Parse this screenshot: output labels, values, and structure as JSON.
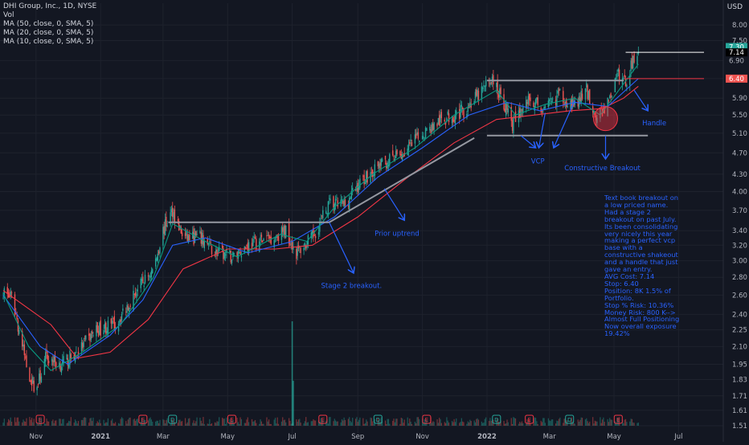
{
  "header": {
    "symbol": "DHI Group, Inc., 1D, NYSE",
    "vol_label": "Vol",
    "indicators": [
      "MA (50, close, 0, SMA, 5)",
      "MA (20, close, 0, SMA, 5)",
      "MA (10, close, 0, SMA, 5)"
    ],
    "currency": "USD"
  },
  "chart_data": {
    "type": "candlestick",
    "title": "DHI Group, Inc., 1D, NYSE",
    "y_scale": "log",
    "ylim": [
      1.48,
      8.5
    ],
    "y_ticks": [
      8.0,
      7.5,
      6.9,
      6.4,
      5.9,
      5.5,
      5.1,
      4.7,
      4.3,
      4.0,
      3.7,
      3.4,
      3.2,
      3.0,
      2.8,
      2.6,
      2.4,
      2.25,
      2.1,
      1.95,
      1.83,
      1.71,
      1.61,
      1.51
    ],
    "x_ticks": [
      "Nov",
      "2021",
      "Mar",
      "May",
      "Jul",
      "Sep",
      "Nov",
      "2022",
      "Mar",
      "May",
      "Jul"
    ],
    "price_labels": [
      {
        "text": "7.30",
        "value": 7.3,
        "color": "#26a69a"
      },
      {
        "text": "7.14",
        "value": 7.14,
        "color": "#000000"
      },
      {
        "text": "6.90",
        "value": 6.9,
        "color": "#131722"
      },
      {
        "text": "6.40",
        "value": 6.4,
        "color": "#ef5350"
      }
    ],
    "close_path": [
      [
        "2020-10-01",
        2.65
      ],
      [
        "2020-10-10",
        2.55
      ],
      [
        "2020-10-17",
        2.2
      ],
      [
        "2020-10-24",
        1.9
      ],
      [
        "2020-11-01",
        1.75
      ],
      [
        "2020-11-10",
        2.0
      ],
      [
        "2020-11-25",
        1.95
      ],
      [
        "2020-12-10",
        2.05
      ],
      [
        "2020-12-28",
        2.25
      ],
      [
        "2021-01-15",
        2.3
      ],
      [
        "2021-02-01",
        2.6
      ],
      [
        "2021-02-20",
        2.9
      ],
      [
        "2021-03-01",
        3.4
      ],
      [
        "2021-03-10",
        3.7
      ],
      [
        "2021-03-20",
        3.3
      ],
      [
        "2021-04-05",
        3.3
      ],
      [
        "2021-04-20",
        3.1
      ],
      [
        "2021-05-05",
        3.05
      ],
      [
        "2021-05-20",
        3.2
      ],
      [
        "2021-06-10",
        3.3
      ],
      [
        "2021-06-25",
        3.4
      ],
      [
        "2021-07-05",
        3.1
      ],
      [
        "2021-07-20",
        3.3
      ],
      [
        "2021-08-05",
        3.8
      ],
      [
        "2021-08-20",
        3.8
      ],
      [
        "2021-09-05",
        4.2
      ],
      [
        "2021-09-25",
        4.5
      ],
      [
        "2021-10-15",
        4.7
      ],
      [
        "2021-11-01",
        5.1
      ],
      [
        "2021-11-20",
        5.4
      ],
      [
        "2021-12-10",
        5.6
      ],
      [
        "2021-12-25",
        6.0
      ],
      [
        "2022-01-05",
        6.4
      ],
      [
        "2022-01-15",
        5.9
      ],
      [
        "2022-01-25",
        5.3
      ],
      [
        "2022-02-10",
        5.9
      ],
      [
        "2022-02-25",
        5.6
      ],
      [
        "2022-03-10",
        6.0
      ],
      [
        "2022-03-25",
        5.7
      ],
      [
        "2022-04-05",
        6.1
      ],
      [
        "2022-04-15",
        5.4
      ],
      [
        "2022-04-25",
        5.8
      ],
      [
        "2022-05-05",
        6.5
      ],
      [
        "2022-05-12",
        6.3
      ],
      [
        "2022-05-20",
        7.0
      ],
      [
        "2022-05-24",
        7.3
      ]
    ],
    "moving_averages": [
      {
        "name": "MA (50, close, 0, SMA, 5)",
        "color": "#f23645",
        "points": [
          [
            "2020-10-01",
            2.65
          ],
          [
            "2020-11-15",
            2.3
          ],
          [
            "2020-12-10",
            2.0
          ],
          [
            "2021-01-10",
            2.05
          ],
          [
            "2021-02-15",
            2.35
          ],
          [
            "2021-03-20",
            2.9
          ],
          [
            "2021-05-01",
            3.15
          ],
          [
            "2021-06-15",
            3.15
          ],
          [
            "2021-07-20",
            3.2
          ],
          [
            "2021-09-01",
            3.6
          ],
          [
            "2021-10-15",
            4.2
          ],
          [
            "2021-12-01",
            4.9
          ],
          [
            "2022-01-10",
            5.4
          ],
          [
            "2022-02-15",
            5.5
          ],
          [
            "2022-03-20",
            5.6
          ],
          [
            "2022-04-20",
            5.65
          ],
          [
            "2022-05-10",
            5.9
          ],
          [
            "2022-05-24",
            6.2
          ]
        ]
      },
      {
        "name": "MA (20, close, 0, SMA, 5)",
        "color": "#2962ff",
        "points": [
          [
            "2020-10-01",
            2.6
          ],
          [
            "2020-11-05",
            2.1
          ],
          [
            "2020-12-01",
            1.95
          ],
          [
            "2021-01-10",
            2.2
          ],
          [
            "2021-02-10",
            2.55
          ],
          [
            "2021-03-10",
            3.2
          ],
          [
            "2021-04-10",
            3.3
          ],
          [
            "2021-05-20",
            3.1
          ],
          [
            "2021-07-01",
            3.25
          ],
          [
            "2021-08-10",
            3.6
          ],
          [
            "2021-09-20",
            4.25
          ],
          [
            "2021-11-01",
            4.8
          ],
          [
            "2021-12-15",
            5.5
          ],
          [
            "2022-01-20",
            5.8
          ],
          [
            "2022-02-20",
            5.6
          ],
          [
            "2022-03-25",
            5.8
          ],
          [
            "2022-04-25",
            5.7
          ],
          [
            "2022-05-24",
            6.4
          ]
        ]
      },
      {
        "name": "MA (10, close, 0, SMA, 5)",
        "color": "#089981",
        "points": [
          [
            "2020-10-01",
            2.62
          ],
          [
            "2020-10-25",
            2.1
          ],
          [
            "2020-11-15",
            1.9
          ],
          [
            "2020-12-15",
            2.05
          ],
          [
            "2021-01-20",
            2.3
          ],
          [
            "2021-02-20",
            2.8
          ],
          [
            "2021-03-10",
            3.5
          ],
          [
            "2021-04-10",
            3.25
          ],
          [
            "2021-05-10",
            3.05
          ],
          [
            "2021-06-20",
            3.35
          ],
          [
            "2021-07-15",
            3.25
          ],
          [
            "2021-08-10",
            3.75
          ],
          [
            "2021-09-15",
            4.3
          ],
          [
            "2021-10-25",
            4.8
          ],
          [
            "2021-12-01",
            5.5
          ],
          [
            "2022-01-10",
            6.1
          ],
          [
            "2022-01-28",
            5.5
          ],
          [
            "2022-02-25",
            5.75
          ],
          [
            "2022-03-25",
            5.9
          ],
          [
            "2022-04-18",
            5.5
          ],
          [
            "2022-05-24",
            6.8
          ]
        ]
      }
    ],
    "annotations": [
      {
        "type": "line",
        "from": [
          "2021-03-06",
          3.52
        ],
        "to": [
          "2021-08-05",
          3.52
        ],
        "color": "#9598a1"
      },
      {
        "type": "line",
        "from": [
          "2021-08-05",
          3.52
        ],
        "to": [
          "2021-12-20",
          5.0
        ],
        "color": "#9598a1"
      },
      {
        "type": "line",
        "from": [
          "2022-01-01",
          6.35
        ],
        "to": [
          "2022-05-10",
          6.35
        ],
        "color": "#9598a1"
      },
      {
        "type": "line",
        "from": [
          "2022-01-01",
          5.05
        ],
        "to": [
          "2022-06-02",
          5.05
        ],
        "color": "#9598a1"
      },
      {
        "type": "line",
        "from": [
          "2022-05-12",
          7.14
        ],
        "to": [
          "2022-07-25",
          7.14
        ],
        "color": "#ffffff"
      },
      {
        "type": "line",
        "from": [
          "2022-05-12",
          6.4
        ],
        "to": [
          "2022-07-25",
          6.4
        ],
        "color": "#f23645"
      }
    ],
    "text_annotations": [
      {
        "text": "Stage 2 breakout.",
        "x": "2021-08-26",
        "y": 2.68
      },
      {
        "text": "Prior uptrend",
        "x": "2021-10-08",
        "y": 3.33
      },
      {
        "text": "VCP",
        "x": "2022-02-18",
        "y": 4.5
      },
      {
        "text": "Constructive Breakout",
        "x": "2022-04-20",
        "y": 4.37
      },
      {
        "text": "Handle",
        "x": "2022-06-08",
        "y": 5.27
      }
    ],
    "note_lines": [
      "Text book breakout on a low priced name.",
      "Had a stage 2 breakout on past July. Its been consolidating very nicely this year making a perfect vcp base with a constructive shakeout and a handle that just gave an entry.",
      "AVG Cost: 7.14",
      "Stop: 6.40",
      "Position: 8K 1.5% of Portfolio.",
      "Stop % Risk: 10.36%",
      "Money Risk: 800 K--> Almost Full Positioning",
      "Now overall exposure 19.42%"
    ],
    "volume_spikes": [
      {
        "date": "2021-07-01",
        "relative": 1.0
      },
      {
        "date": "2021-07-02",
        "relative": 0.43
      }
    ],
    "earnings_markers": [
      {
        "date": "2020-11-05",
        "symbol": "E"
      },
      {
        "date": "2021-02-10",
        "symbol": "E"
      },
      {
        "date": "2021-03-10",
        "symbol": "D"
      },
      {
        "date": "2021-05-05",
        "symbol": "E"
      },
      {
        "date": "2021-07-30",
        "symbol": "E"
      },
      {
        "date": "2021-09-20",
        "symbol": "D"
      },
      {
        "date": "2021-11-05",
        "symbol": "E"
      },
      {
        "date": "2022-01-10",
        "symbol": "D"
      },
      {
        "date": "2022-02-10",
        "symbol": "E"
      },
      {
        "date": "2022-03-20",
        "symbol": "D"
      },
      {
        "date": "2022-05-05",
        "symbol": "E"
      }
    ]
  }
}
